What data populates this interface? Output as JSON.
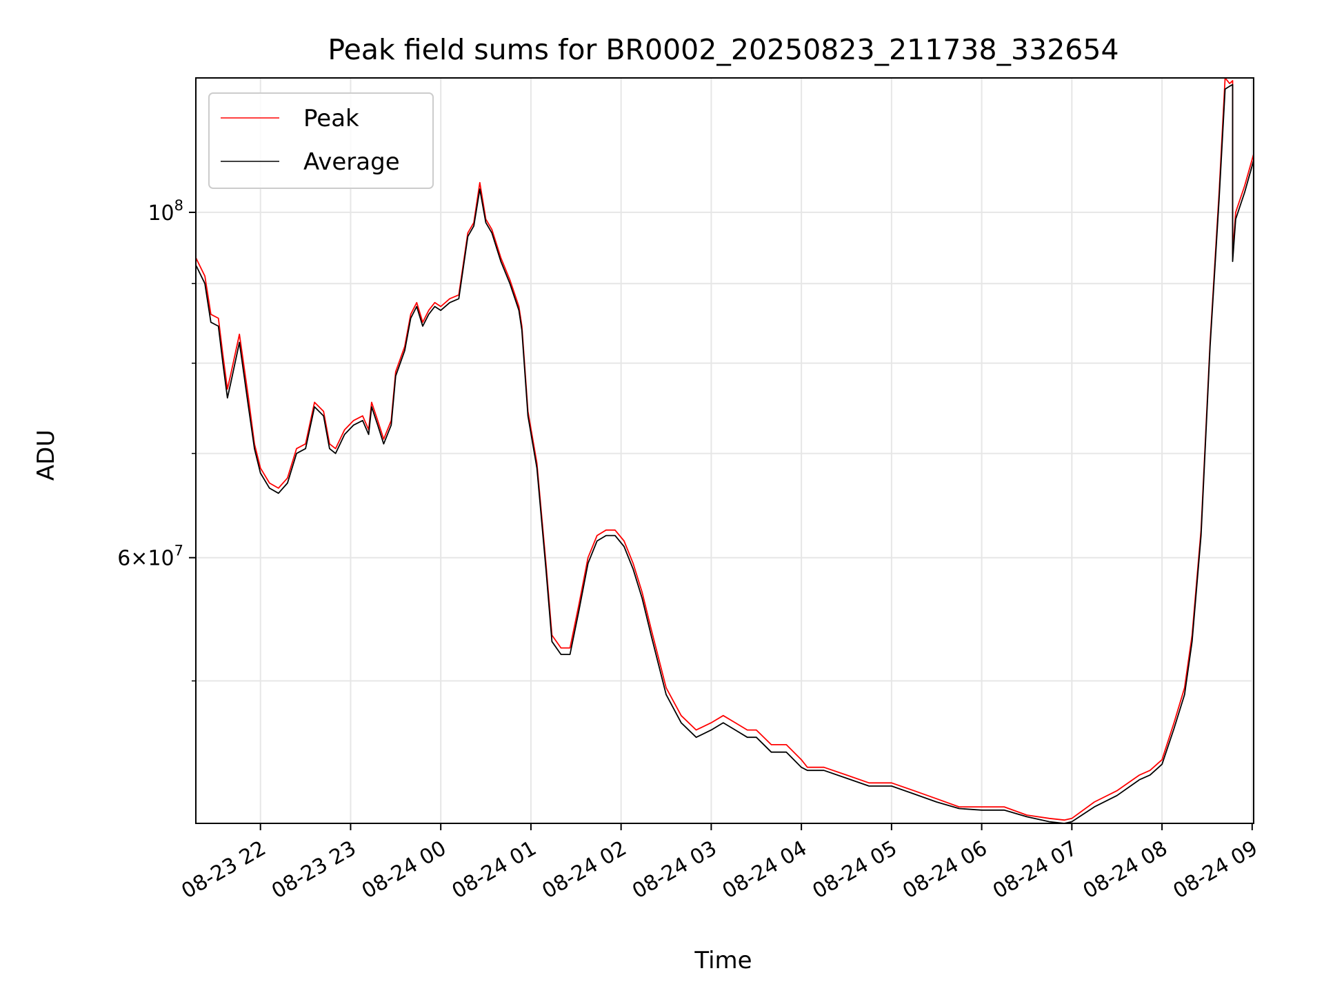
{
  "chart_data": {
    "type": "line",
    "title": "Peak field sums for BR0002_20250823_211738_332654",
    "xlabel": "Time",
    "ylabel": "ADU",
    "yscale": "log",
    "ylim": [
      40500000,
      122000000
    ],
    "xlim": [
      "2025-08-23 21:17",
      "2025-08-24 09:01"
    ],
    "grid": true,
    "legend_position": "top-left",
    "x_tick_labels": [
      "08-23 22",
      "08-23 23",
      "08-24 00",
      "08-24 01",
      "08-24 02",
      "08-24 03",
      "08-24 04",
      "08-24 05",
      "08-24 06",
      "08-24 07",
      "08-24 08",
      "08-24 09"
    ],
    "y_tick_labels": [
      {
        "value": 100000000,
        "label": "10^8"
      },
      {
        "value": 60000000,
        "label": "6×10^7"
      }
    ],
    "x": [
      "2025-08-23 21:17",
      "2025-08-23 21:23",
      "2025-08-23 21:27",
      "2025-08-23 21:32",
      "2025-08-23 21:35",
      "2025-08-23 21:38",
      "2025-08-23 21:40",
      "2025-08-23 21:46",
      "2025-08-23 21:52",
      "2025-08-23 21:56",
      "2025-08-23 22:00",
      "2025-08-23 22:06",
      "2025-08-23 22:12",
      "2025-08-23 22:18",
      "2025-08-23 22:24",
      "2025-08-23 22:30",
      "2025-08-23 22:36",
      "2025-08-23 22:42",
      "2025-08-23 22:46",
      "2025-08-23 22:50",
      "2025-08-23 22:56",
      "2025-08-23 23:02",
      "2025-08-23 23:08",
      "2025-08-23 23:12",
      "2025-08-23 23:14",
      "2025-08-23 23:18",
      "2025-08-23 23:22",
      "2025-08-23 23:27",
      "2025-08-23 23:30",
      "2025-08-23 23:36",
      "2025-08-23 23:40",
      "2025-08-23 23:44",
      "2025-08-23 23:48",
      "2025-08-23 23:52",
      "2025-08-23 23:56",
      "2025-08-24 00:00",
      "2025-08-24 00:06",
      "2025-08-24 00:12",
      "2025-08-24 00:18",
      "2025-08-24 00:22",
      "2025-08-24 00:26",
      "2025-08-24 00:30",
      "2025-08-24 00:34",
      "2025-08-24 00:40",
      "2025-08-24 00:46",
      "2025-08-24 00:52",
      "2025-08-24 00:54",
      "2025-08-24 00:58",
      "2025-08-24 01:04",
      "2025-08-24 01:10",
      "2025-08-24 01:14",
      "2025-08-24 01:20",
      "2025-08-24 01:26",
      "2025-08-24 01:32",
      "2025-08-24 01:38",
      "2025-08-24 01:44",
      "2025-08-24 01:50",
      "2025-08-24 01:56",
      "2025-08-24 02:02",
      "2025-08-24 02:08",
      "2025-08-24 02:14",
      "2025-08-24 02:20",
      "2025-08-24 02:30",
      "2025-08-24 02:40",
      "2025-08-24 02:50",
      "2025-08-24 03:00",
      "2025-08-24 03:08",
      "2025-08-24 03:16",
      "2025-08-24 03:24",
      "2025-08-24 03:30",
      "2025-08-24 03:40",
      "2025-08-24 03:50",
      "2025-08-24 04:00",
      "2025-08-24 04:04",
      "2025-08-24 04:15",
      "2025-08-24 04:30",
      "2025-08-24 04:45",
      "2025-08-24 05:00",
      "2025-08-24 05:15",
      "2025-08-24 05:30",
      "2025-08-24 05:45",
      "2025-08-24 06:00",
      "2025-08-24 06:15",
      "2025-08-24 06:30",
      "2025-08-24 06:45",
      "2025-08-24 06:55",
      "2025-08-24 07:00",
      "2025-08-24 07:15",
      "2025-08-24 07:30",
      "2025-08-24 07:45",
      "2025-08-24 07:52",
      "2025-08-24 08:00",
      "2025-08-24 08:08",
      "2025-08-24 08:15",
      "2025-08-24 08:20",
      "2025-08-24 08:26",
      "2025-08-24 08:32",
      "2025-08-24 08:38",
      "2025-08-24 08:42",
      "2025-08-24 08:45",
      "2025-08-24 08:47",
      "2025-08-24 08:47",
      "2025-08-24 08:49",
      "2025-08-24 08:55",
      "2025-08-24 09:01"
    ],
    "series": [
      {
        "name": "Peak",
        "color": "#ff0000",
        "values": [
          93500000,
          91000000,
          86000000,
          85500000,
          81000000,
          77000000,
          78500000,
          83500000,
          76000000,
          71000000,
          68500000,
          67000000,
          66500000,
          67500000,
          70500000,
          71000000,
          75500000,
          74500000,
          71000000,
          70500000,
          72500000,
          73500000,
          74000000,
          72500000,
          75500000,
          73500000,
          71500000,
          73500000,
          79000000,
          82000000,
          86000000,
          87500000,
          85000000,
          86500000,
          87500000,
          87000000,
          88000000,
          88500000,
          97000000,
          98500000,
          104500000,
          99000000,
          97500000,
          93500000,
          90500000,
          87000000,
          84500000,
          74500000,
          69000000,
          59500000,
          53500000,
          52500000,
          52500000,
          56000000,
          60000000,
          62000000,
          62500000,
          62500000,
          61500000,
          59500000,
          57000000,
          54000000,
          49500000,
          47500000,
          46500000,
          47000000,
          47500000,
          47000000,
          46500000,
          46500000,
          45500000,
          45500000,
          44500000,
          44000000,
          44000000,
          43500000,
          43000000,
          43000000,
          42500000,
          42000000,
          41500000,
          41500000,
          41500000,
          41000000,
          40800000,
          40700000,
          40800000,
          41800000,
          42500000,
          43500000,
          43800000,
          44500000,
          47000000,
          49500000,
          53500000,
          62500000,
          82500000,
          103000000,
          122000000,
          121000000,
          121500000,
          94000000,
          100000000,
          104000000,
          109000000
        ]
      },
      {
        "name": "Average",
        "color": "#000000",
        "values": [
          92500000,
          90000000,
          85000000,
          84500000,
          80000000,
          76000000,
          77500000,
          82500000,
          75000000,
          70500000,
          68000000,
          66500000,
          66000000,
          67000000,
          70000000,
          70500000,
          75000000,
          74000000,
          70500000,
          70000000,
          72000000,
          73000000,
          73500000,
          72000000,
          75000000,
          73000000,
          71000000,
          73000000,
          78500000,
          81500000,
          85500000,
          87000000,
          84500000,
          86000000,
          87000000,
          86500000,
          87500000,
          88000000,
          96500000,
          98000000,
          103500000,
          98500000,
          97000000,
          93000000,
          90000000,
          86500000,
          84000000,
          74000000,
          68500000,
          59000000,
          53000000,
          52000000,
          52000000,
          55500000,
          59500000,
          61500000,
          62000000,
          62000000,
          61000000,
          59000000,
          56500000,
          53500000,
          49000000,
          47000000,
          46000000,
          46500000,
          47000000,
          46500000,
          46000000,
          46000000,
          45000000,
          45000000,
          44000000,
          43800000,
          43800000,
          43300000,
          42800000,
          42800000,
          42300000,
          41800000,
          41400000,
          41300000,
          41300000,
          40900000,
          40600000,
          40500000,
          40600000,
          41500000,
          42200000,
          43200000,
          43500000,
          44200000,
          46600000,
          49000000,
          53000000,
          62000000,
          82000000,
          102000000,
          120000000,
          120500000,
          120800000,
          93000000,
          99000000,
          103000000,
          108000000
        ]
      }
    ]
  }
}
